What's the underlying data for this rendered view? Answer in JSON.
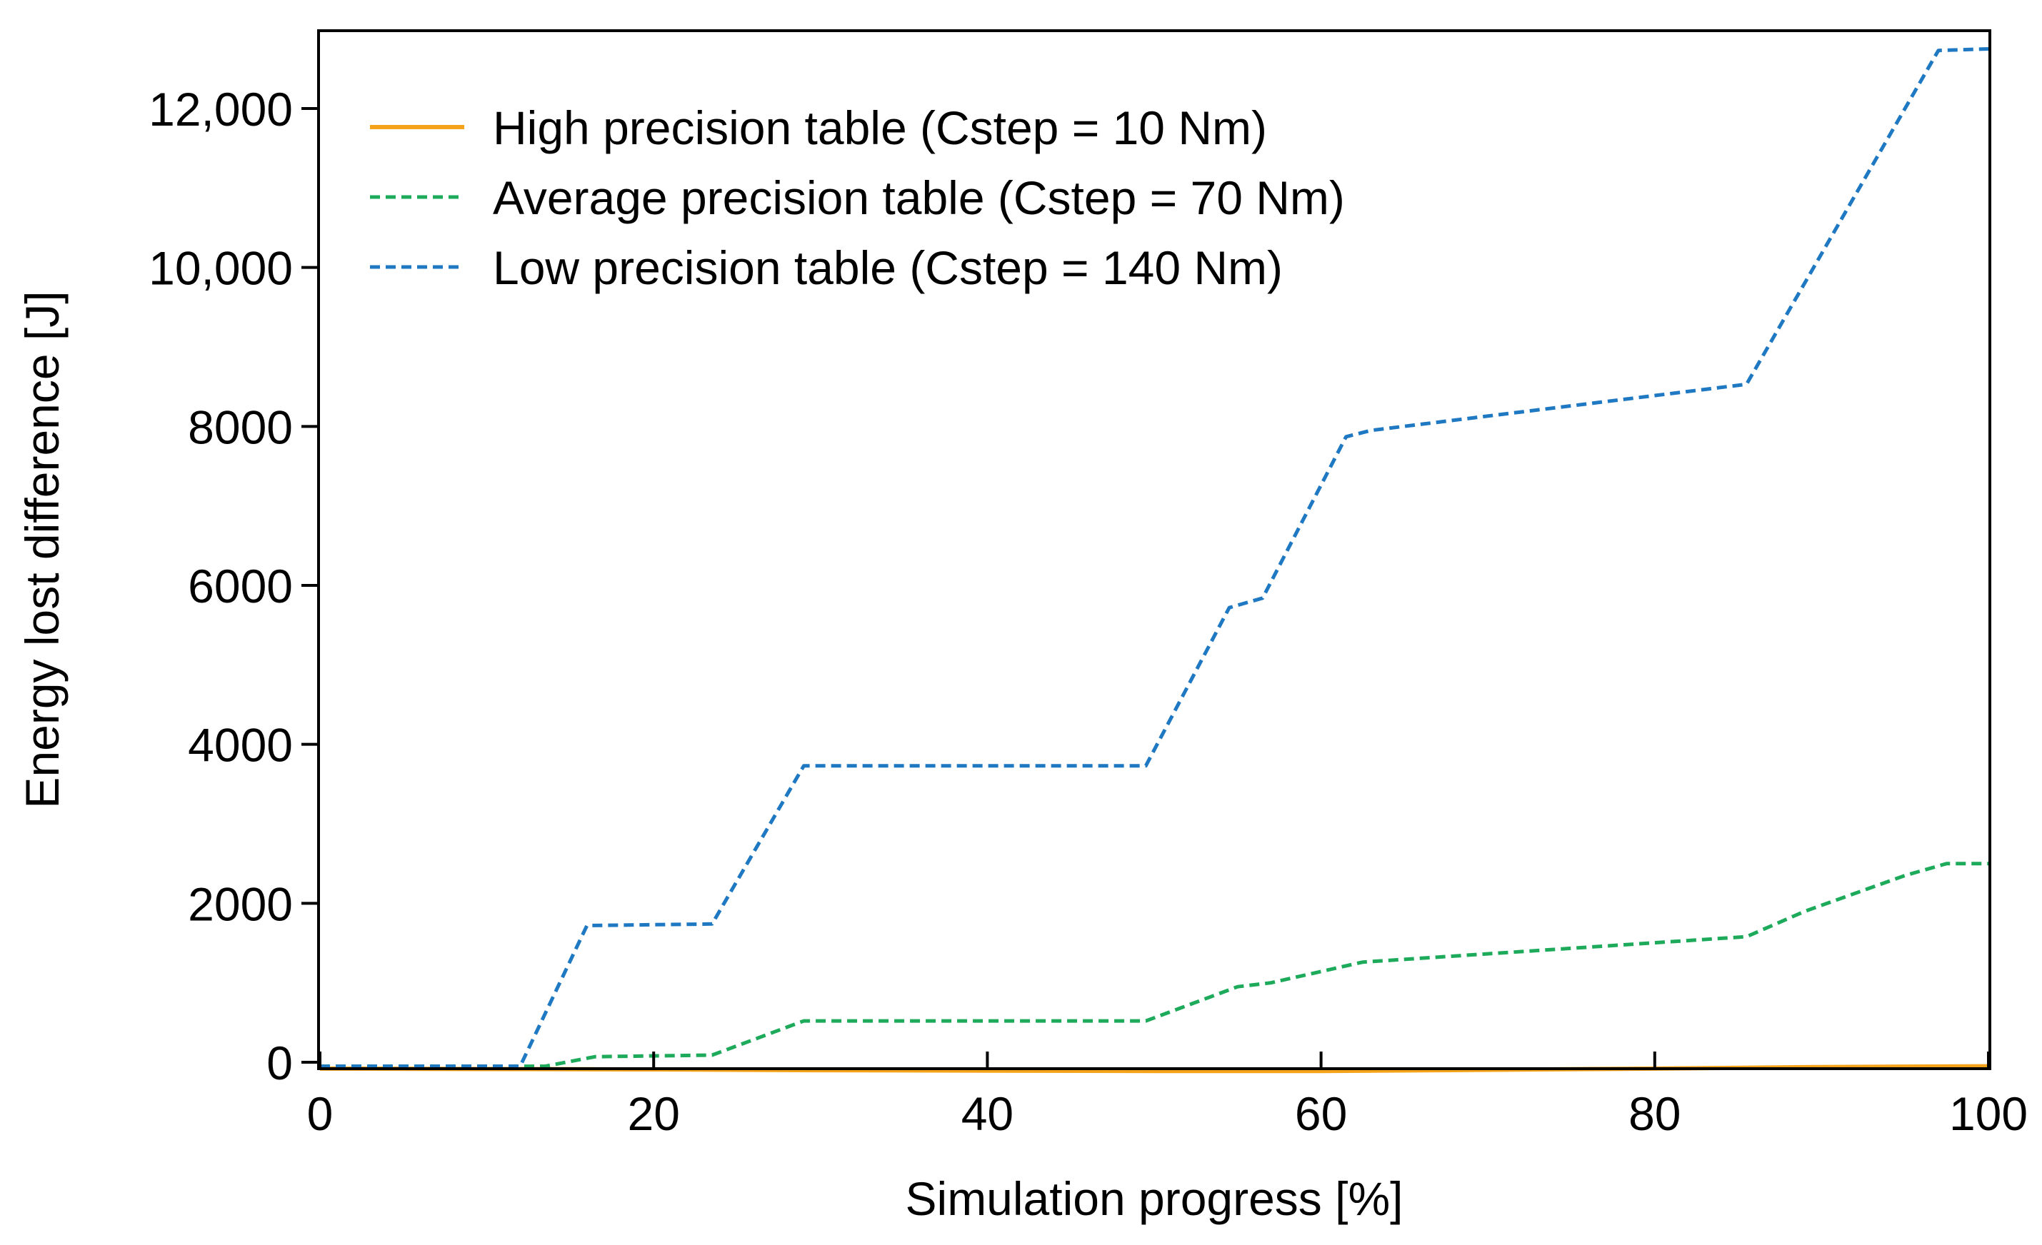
{
  "chart_data": {
    "type": "line",
    "title": "",
    "xlabel": "Simulation progress [%]",
    "ylabel": "Energy lost difference [J]",
    "xlim": [
      0,
      100
    ],
    "ylim": [
      -150,
      13000
    ],
    "xticks": [
      0,
      20,
      40,
      60,
      80,
      100
    ],
    "xtick_labels": [
      "0",
      "20",
      "40",
      "60",
      "80",
      "100"
    ],
    "yticks": [
      0,
      2000,
      4000,
      6000,
      8000,
      10000,
      12000
    ],
    "ytick_labels": [
      "0",
      "2000",
      "4000",
      "6000",
      "8000",
      "10,000",
      "12,000"
    ],
    "grid": false,
    "legend_position": "top-left",
    "series": [
      {
        "name": "High precision table (Cstep = 10 Nm)",
        "color": "#f5a31a",
        "dash": "solid",
        "x": [
          0,
          10,
          20,
          30,
          40,
          50,
          60,
          70,
          80,
          90,
          100
        ],
        "y": [
          -80,
          -85,
          -90,
          -100,
          -105,
          -110,
          -110,
          -95,
          -80,
          -60,
          -50
        ]
      },
      {
        "name": "Average precision table (Cstep = 70 Nm)",
        "color": "#1daa5a",
        "dash": "dashed",
        "x": [
          0,
          13.5,
          16.5,
          23.5,
          29,
          49.5,
          55,
          57,
          62.5,
          85.5,
          89,
          95,
          97.5,
          100
        ],
        "y": [
          -50,
          -50,
          70,
          90,
          520,
          520,
          950,
          1000,
          1260,
          1580,
          1900,
          2350,
          2500,
          2500
        ]
      },
      {
        "name": "Low precision table (Cstep = 140 Nm)",
        "color": "#1f78c2",
        "dash": "dashed",
        "x": [
          0,
          12,
          16,
          23.5,
          29,
          49.5,
          54.5,
          56.5,
          61.5,
          63,
          85.5,
          97,
          100
        ],
        "y": [
          -50,
          -50,
          1720,
          1740,
          3730,
          3730,
          5720,
          5840,
          7870,
          7950,
          8530,
          12730,
          12750
        ]
      }
    ]
  }
}
